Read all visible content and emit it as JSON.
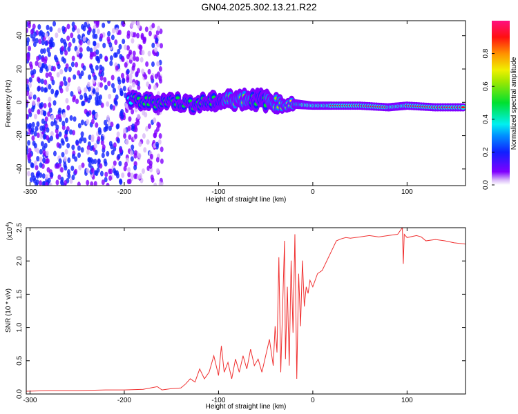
{
  "title": "GN04.2025.302.13.21.R22",
  "chart_data": [
    {
      "type": "heatmap",
      "title": "GN04.2025.302.13.21.R22",
      "xlabel": "Height of straight line (km)",
      "ylabel": "Frequency (Hz)",
      "xlim": [
        -304,
        162
      ],
      "ylim": [
        -50,
        49
      ],
      "xticks": [
        "-300",
        "-200",
        "-100",
        "0",
        "100"
      ],
      "xtick_values": [
        -300,
        -200,
        -100,
        0,
        100
      ],
      "yticks": [
        "40",
        "20",
        "0",
        "-20",
        "-40"
      ],
      "ytick_values": [
        40,
        20,
        0,
        -20,
        -40
      ],
      "colorbar": {
        "label": "Normalized spectral amplitude",
        "range": [
          0,
          1
        ],
        "ticks": [
          "0.0",
          "0.2",
          "0.4",
          "0.6",
          "0.8"
        ],
        "tick_values": [
          0,
          0.2,
          0.4,
          0.6,
          0.8
        ],
        "colormap": "rainbow"
      },
      "noise_region": {
        "x_range": [
          -304,
          -160
        ],
        "amplitude": 0.15
      },
      "ridge": [
        {
          "x": -195,
          "freq": 1,
          "amp": 0.35,
          "width": 8
        },
        {
          "x": -170,
          "freq": 0,
          "amp": 0.45,
          "width": 8
        },
        {
          "x": -150,
          "freq": 1,
          "amp": 0.4,
          "width": 8
        },
        {
          "x": -130,
          "freq": -1,
          "amp": 0.45,
          "width": 8
        },
        {
          "x": -110,
          "freq": 0,
          "amp": 0.5,
          "width": 9
        },
        {
          "x": -95,
          "freq": 1,
          "amp": 0.5,
          "width": 9
        },
        {
          "x": -80,
          "freq": 2,
          "amp": 0.55,
          "width": 10
        },
        {
          "x": -65,
          "freq": 2,
          "amp": 0.5,
          "width": 10
        },
        {
          "x": -50,
          "freq": 1,
          "amp": 0.5,
          "width": 10
        },
        {
          "x": -35,
          "freq": -1,
          "amp": 0.55,
          "width": 7
        },
        {
          "x": -20,
          "freq": -1,
          "amp": 0.7,
          "width": 6
        },
        {
          "x": 0,
          "freq": -2,
          "amp": 0.8,
          "width": 5
        },
        {
          "x": 20,
          "freq": -2,
          "amp": 0.85,
          "width": 5
        },
        {
          "x": 50,
          "freq": -2,
          "amp": 0.9,
          "width": 5
        },
        {
          "x": 80,
          "freq": -3,
          "amp": 0.85,
          "width": 5
        },
        {
          "x": 100,
          "freq": -2,
          "amp": 0.9,
          "width": 5
        },
        {
          "x": 130,
          "freq": -3,
          "amp": 0.9,
          "width": 5
        },
        {
          "x": 162,
          "freq": -3,
          "amp": 0.9,
          "width": 5
        }
      ]
    },
    {
      "type": "line",
      "xlabel": "Height of straight line (km)",
      "ylabel": "SNR (10 * v/v)",
      "yscale_label": "(x10",
      "yscale_exp": "4",
      "xlim": [
        -304,
        162
      ],
      "ylim": [
        0,
        2.5
      ],
      "xticks": [
        "-300",
        "-200",
        "-100",
        "0",
        "100"
      ],
      "xtick_values": [
        -300,
        -200,
        -100,
        0,
        100
      ],
      "yticks": [
        "0.0",
        "0.5",
        "1.0",
        "1.5",
        "2.0",
        "2.5"
      ],
      "ytick_values": [
        0,
        0.5,
        1.0,
        1.5,
        2.0,
        2.5
      ],
      "color": "#f03030",
      "series": [
        {
          "name": "SNR",
          "x": [
            -304,
            -280,
            -250,
            -220,
            -200,
            -180,
            -165,
            -160,
            -150,
            -140,
            -135,
            -130,
            -125,
            -120,
            -115,
            -110,
            -105,
            -100,
            -97,
            -94,
            -90,
            -86,
            -82,
            -78,
            -74,
            -70,
            -66,
            -62,
            -58,
            -54,
            -50,
            -46,
            -42,
            -40,
            -38,
            -36,
            -34,
            -32,
            -30,
            -29,
            -27,
            -25,
            -23,
            -21,
            -19,
            -17,
            -15,
            -13,
            -11,
            -9,
            -7,
            -5,
            -3,
            0,
            5,
            10,
            15,
            20,
            25,
            30,
            35,
            40,
            50,
            60,
            70,
            80,
            90,
            95,
            96,
            97,
            100,
            110,
            115,
            120,
            130,
            140,
            150,
            162
          ],
          "y": [
            0.01,
            0.02,
            0.02,
            0.03,
            0.03,
            0.04,
            0.08,
            0.03,
            0.05,
            0.06,
            0.12,
            0.2,
            0.15,
            0.35,
            0.2,
            0.3,
            0.55,
            0.25,
            0.7,
            0.3,
            0.45,
            0.2,
            0.5,
            0.3,
            0.55,
            0.35,
            0.65,
            0.4,
            0.5,
            0.3,
            0.55,
            0.8,
            0.4,
            1.0,
            0.6,
            2.05,
            0.3,
            1.3,
            2.3,
            0.5,
            1.6,
            0.4,
            2.0,
            0.9,
            2.4,
            0.2,
            1.8,
            1.0,
            2.0,
            1.3,
            1.6,
            1.5,
            1.7,
            1.6,
            1.8,
            1.85,
            2.0,
            2.15,
            2.3,
            2.33,
            2.35,
            2.34,
            2.36,
            2.38,
            2.36,
            2.38,
            2.4,
            2.5,
            1.95,
            2.4,
            2.35,
            2.38,
            2.36,
            2.3,
            2.32,
            2.3,
            2.27,
            2.25
          ]
        }
      ]
    }
  ]
}
